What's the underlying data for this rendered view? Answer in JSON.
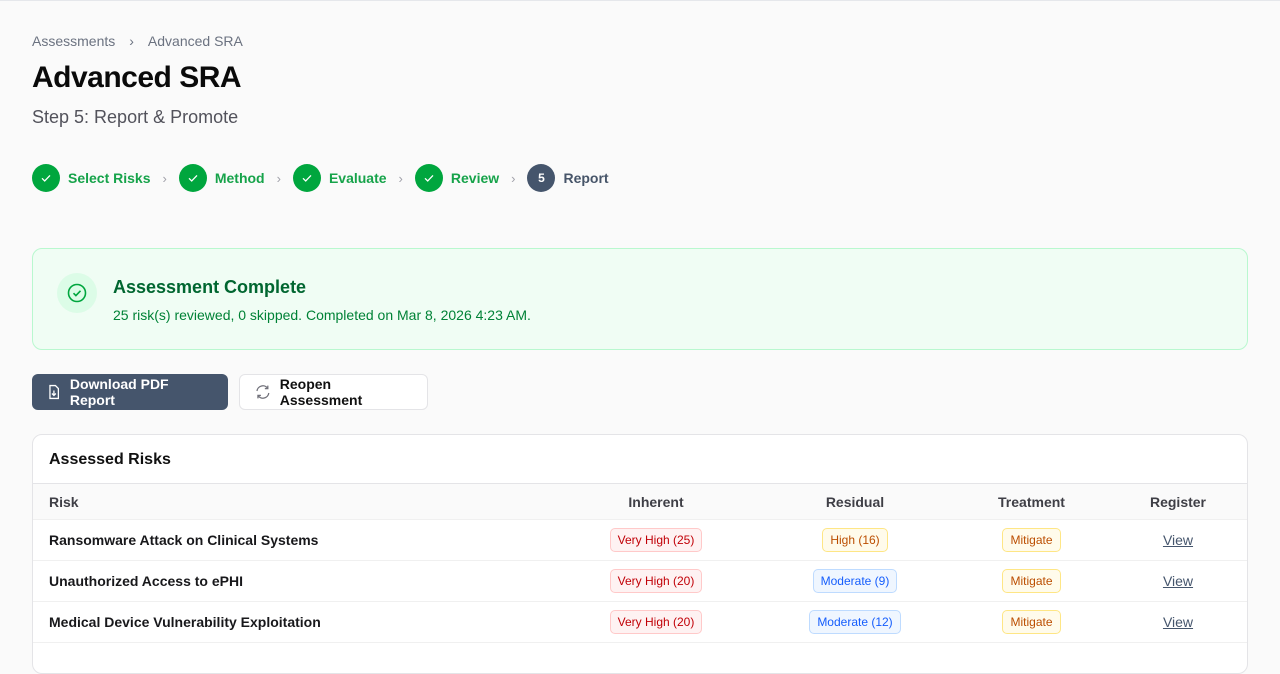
{
  "breadcrumb": [
    "Assessments",
    "Advanced SRA"
  ],
  "title": "Advanced SRA",
  "subtitle": "Step 5: Report & Promote",
  "steps": [
    {
      "label": "Select Risks",
      "state": "done"
    },
    {
      "label": "Method",
      "state": "done"
    },
    {
      "label": "Evaluate",
      "state": "done"
    },
    {
      "label": "Review",
      "state": "done"
    },
    {
      "label": "Report",
      "state": "current",
      "number": "5"
    }
  ],
  "banner": {
    "title": "Assessment Complete",
    "text": "25 risk(s) reviewed, 0 skipped. Completed on Mar 8, 2026 4:23 AM."
  },
  "actions": {
    "download": "Download PDF Report",
    "reopen": "Reopen Assessment"
  },
  "table": {
    "title": "Assessed Risks",
    "headers": [
      "Risk",
      "Inherent",
      "Residual",
      "Treatment",
      "Register"
    ],
    "rows": [
      {
        "risk": "Ransomware Attack on Clinical Systems",
        "inherent": "Very High (25)",
        "residual": "High (16)",
        "residual_level": "hi",
        "treatment": "Mitigate",
        "link": "View"
      },
      {
        "risk": "Unauthorized Access to ePHI",
        "inherent": "Very High (20)",
        "residual": "Moderate (9)",
        "residual_level": "mo",
        "treatment": "Mitigate",
        "link": "View"
      },
      {
        "risk": "Medical Device Vulnerability Exploitation",
        "inherent": "Very High (20)",
        "residual": "Moderate (12)",
        "residual_level": "mo",
        "treatment": "Mitigate",
        "link": "View"
      }
    ]
  },
  "colors": {
    "success": "#00a63e",
    "current": "#45556c"
  }
}
